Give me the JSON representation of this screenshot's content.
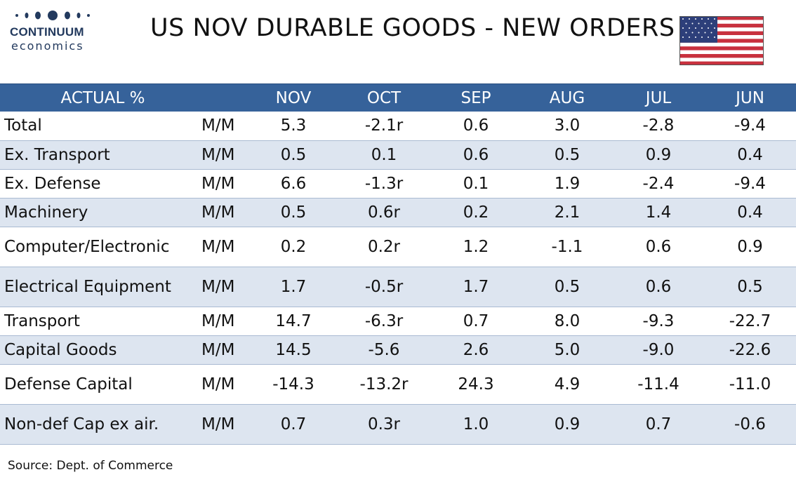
{
  "logo": {
    "name": "CONTINUUM",
    "sub": "economics"
  },
  "title": "US NOV DURABLE GOODS - NEW ORDERS",
  "flag_icon": "us-flag-icon",
  "colors": {
    "header_bg": "#36629a",
    "alt_row": "#dde5f0",
    "brand": "#233a5e"
  },
  "table": {
    "headers": [
      "ACTUAL %",
      "",
      "NOV",
      "OCT",
      "SEP",
      "AUG",
      "JUL",
      "JUN"
    ],
    "rows": [
      {
        "label": "Total",
        "unit": "M/M",
        "values": [
          "5.3",
          "-2.1r",
          "0.6",
          "3.0",
          "-2.8",
          "-9.4"
        ]
      },
      {
        "label": "Ex. Transport",
        "unit": "M/M",
        "values": [
          "0.5",
          "0.1",
          "0.6",
          "0.5",
          "0.9",
          "0.4"
        ]
      },
      {
        "label": "Ex. Defense",
        "unit": "M/M",
        "values": [
          "6.6",
          "-1.3r",
          "0.1",
          "1.9",
          "-2.4",
          "-9.4"
        ]
      },
      {
        "label": "Machinery",
        "unit": "M/M",
        "values": [
          "0.5",
          "0.6r",
          "0.2",
          "2.1",
          "1.4",
          "0.4"
        ]
      },
      {
        "label": "Computer/Electronic",
        "unit": "M/M",
        "values": [
          "0.2",
          "0.2r",
          "1.2",
          "-1.1",
          "0.6",
          "0.9"
        ]
      },
      {
        "label": "Electrical Equipment",
        "unit": "M/M",
        "values": [
          "1.7",
          "-0.5r",
          "1.7",
          "0.5",
          "0.6",
          "0.5"
        ]
      },
      {
        "label": "Transport",
        "unit": "M/M",
        "values": [
          "14.7",
          "-6.3r",
          "0.7",
          "8.0",
          "-9.3",
          "-22.7"
        ]
      },
      {
        "label": "Capital Goods",
        "unit": "M/M",
        "values": [
          "14.5",
          "-5.6",
          "2.6",
          "5.0",
          "-9.0",
          "-22.6"
        ]
      },
      {
        "label": "Defense Capital",
        "unit": "M/M",
        "values": [
          "-14.3",
          "-13.2r",
          "24.3",
          "4.9",
          "-11.4",
          "-11.0"
        ]
      },
      {
        "label": "Non-def Cap ex air.",
        "unit": "M/M",
        "values": [
          "0.7",
          "0.3r",
          "1.0",
          "0.9",
          "0.7",
          "-0.6"
        ]
      }
    ]
  },
  "source": "Source: Dept. of Commerce"
}
